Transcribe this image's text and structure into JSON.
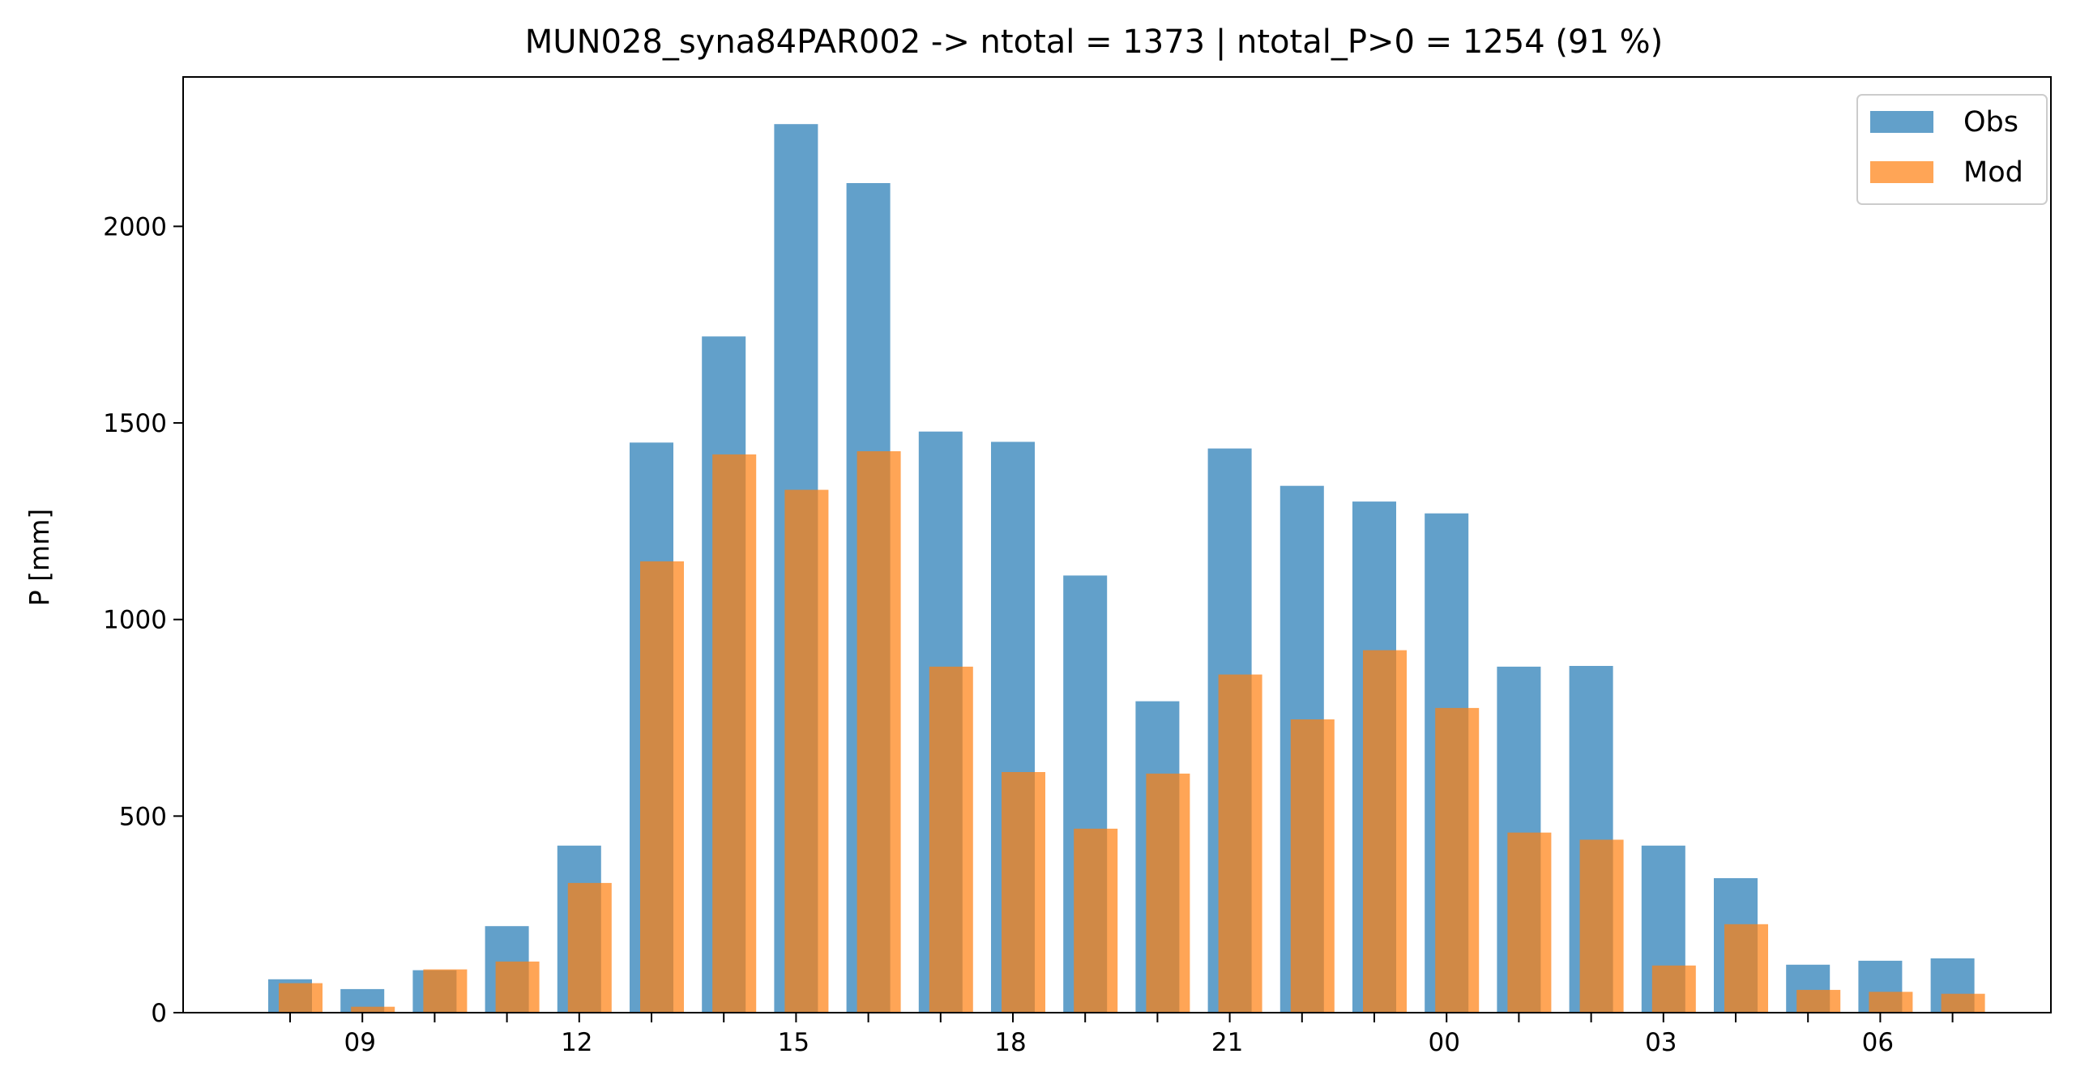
{
  "chart_data": {
    "type": "bar",
    "title": "MUN028_syna84PAR002 -> ntotal = 1373 | ntotal_P>0 = 1254 (91 %)",
    "xlabel": "",
    "ylabel": "P [mm]",
    "ylim": [
      0,
      2380
    ],
    "yticks": [
      0,
      500,
      1000,
      1500,
      2000
    ],
    "hours": [
      8,
      9,
      10,
      11,
      12,
      13,
      14,
      15,
      16,
      17,
      18,
      19,
      20,
      21,
      22,
      23,
      0,
      1,
      2,
      3,
      4,
      5,
      6,
      7
    ],
    "xtick_labels": [
      "09",
      "12",
      "15",
      "18",
      "21",
      "00",
      "03",
      "06"
    ],
    "series": [
      {
        "name": "Obs",
        "color": "#1f77b4",
        "values": [
          85,
          60,
          108,
          220,
          425,
          1450,
          1720,
          2260,
          2110,
          1478,
          1452,
          1112,
          792,
          1435,
          1340,
          1300,
          1270,
          880,
          882,
          425,
          342,
          122,
          132,
          138
        ]
      },
      {
        "name": "Mod",
        "color": "#ff7f0e",
        "values": [
          75,
          15,
          110,
          130,
          330,
          1148,
          1420,
          1330,
          1428,
          880,
          612,
          468,
          608,
          860,
          746,
          922,
          775,
          458,
          440,
          120,
          225,
          58,
          53,
          48
        ]
      }
    ],
    "legend_position": "upper-right",
    "grid": false
  }
}
